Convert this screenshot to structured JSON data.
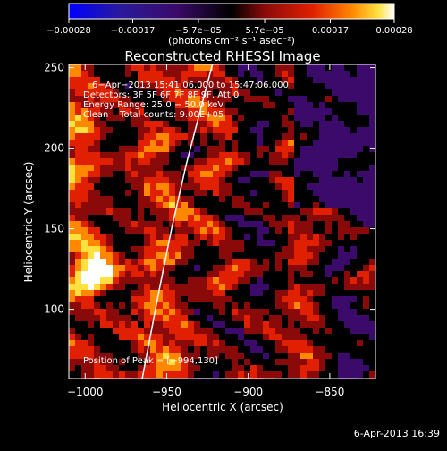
{
  "chart_data": {
    "type": "heatmap",
    "title": "Reconstructed RHESSI Image",
    "xlabel": "Heliocentric X (arcsec)",
    "ylabel": "Heliocentric Y (arcsec)",
    "xlim": [
      -1010,
      -822
    ],
    "ylim": [
      57,
      252
    ],
    "xticks": [
      -1000,
      -950,
      -900,
      -850
    ],
    "yticks": [
      100,
      150,
      200,
      250
    ],
    "xtick_labels": [
      "−1000",
      "−950",
      "−900",
      "−850"
    ],
    "ytick_labels": [
      "100",
      "150",
      "200",
      "250"
    ],
    "colorbar": {
      "range": [
        -0.00028,
        0.00028
      ],
      "ticks": [
        -0.00028,
        -0.00017,
        -5.7e-05,
        5.7e-05,
        0.00017,
        0.00028
      ],
      "tick_labels": [
        "−0.00028",
        "−0.00017",
        "−5.7e−05",
        "5.7e−05",
        "0.00017",
        "0.00028"
      ],
      "units_label": "(photons cm⁻² s⁻¹ asec⁻²)",
      "colors": [
        "#0000ff",
        "#3b0a6a",
        "#000000",
        "#8a0a0a",
        "#e02000",
        "#ff8800",
        "#ffe040",
        "#ffffff"
      ]
    },
    "info_lines": [
      "6−Apr−2013 15:41:06.000 to 15:47:06.000",
      "Detectors: 3F 5F 6F 7F 8F 9F, Att 0",
      "Energy Range: 25.0 − 50.0 keV",
      "Clean    Total counts: 9.00E+05"
    ],
    "peak_label": "Position of Peak = [−994,130]",
    "peak": [
      -994,
      130
    ],
    "limb_curve": [
      [
        -965,
        57
      ],
      [
        -955,
        110
      ],
      [
        -947,
        150
      ],
      [
        -938,
        190
      ],
      [
        -929,
        225
      ],
      [
        -922,
        252
      ]
    ],
    "grid": false
  },
  "timestamp": "6-Apr-2013 16:39"
}
